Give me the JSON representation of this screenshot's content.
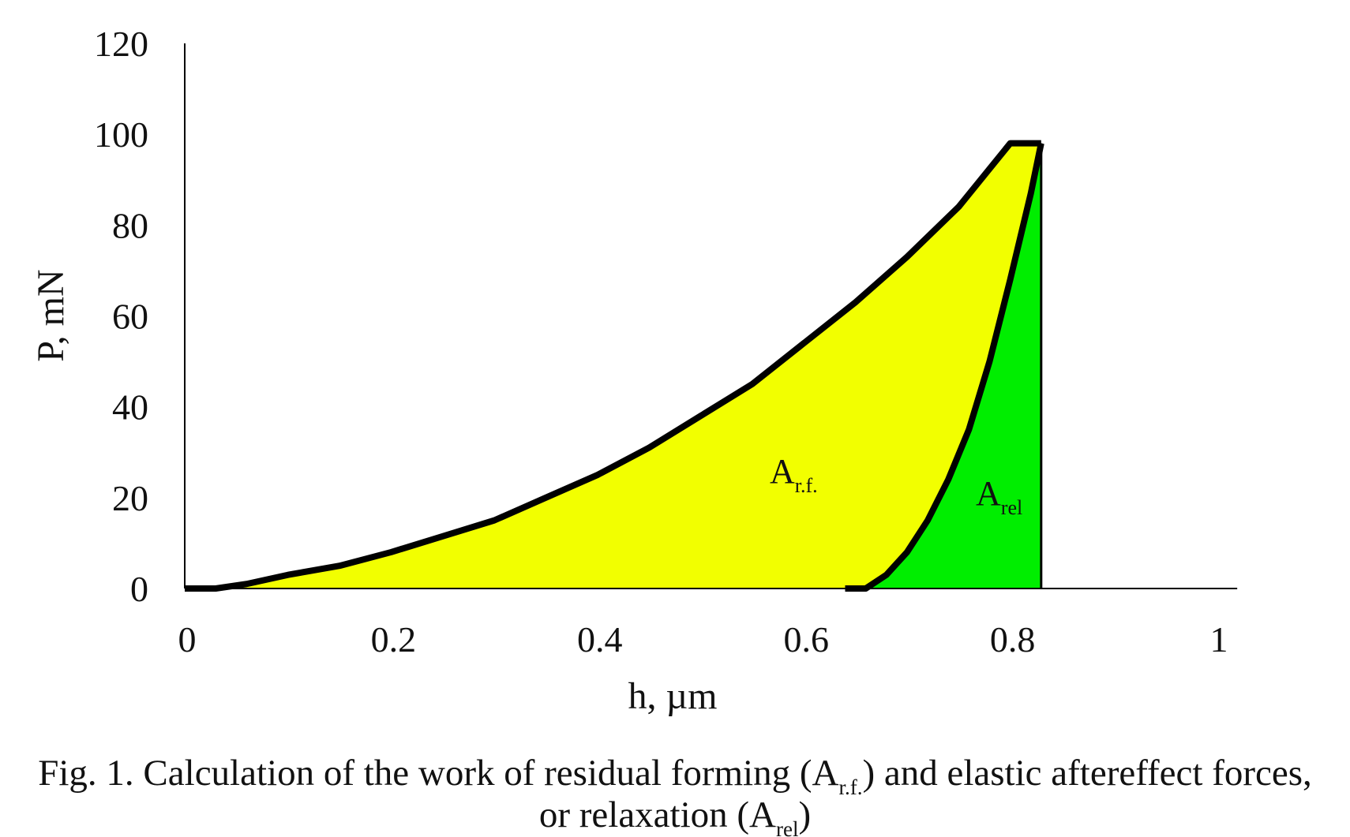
{
  "chart_data": {
    "type": "area-line",
    "x_label": "h, µm",
    "y_label": "P, mN",
    "xlim": [
      0,
      1.02
    ],
    "ylim": [
      0,
      120
    ],
    "xticks": [
      0,
      0.2,
      0.4,
      0.6,
      0.8,
      1
    ],
    "yticks": [
      0,
      20,
      40,
      60,
      80,
      100,
      120
    ],
    "line_color": "#000000",
    "series": [
      {
        "color": "#f2ff00",
        "x": [
          0,
          0.03,
          0.06,
          0.1,
          0.15,
          0.2,
          0.25,
          0.3,
          0.35,
          0.4,
          0.45,
          0.5,
          0.55,
          0.6,
          0.65,
          0.7,
          0.75,
          0.8,
          0.83
        ],
        "values": [
          0,
          0,
          1,
          3,
          5,
          8,
          11.5,
          15,
          20,
          25,
          31,
          38,
          45,
          54,
          63,
          73,
          84,
          98,
          98
        ]
      },
      {
        "color": "#00ee00",
        "x": [
          0.64,
          0.66,
          0.68,
          0.7,
          0.72,
          0.74,
          0.76,
          0.78,
          0.8,
          0.82,
          0.83
        ],
        "values": [
          0,
          0,
          3,
          8,
          15,
          24,
          35,
          50,
          68,
          87,
          98
        ]
      }
    ],
    "annotations": [
      {
        "text": "A",
        "sub": "r.f."
      },
      {
        "text": "A",
        "sub": "rel"
      }
    ]
  },
  "caption": [
    [
      "Fig. 1. Calculation of the work of residual forming (A",
      "r.f.",
      ") and elastic aftereffect forces,"
    ],
    [
      "or relaxation (A",
      "rel",
      ")"
    ]
  ]
}
